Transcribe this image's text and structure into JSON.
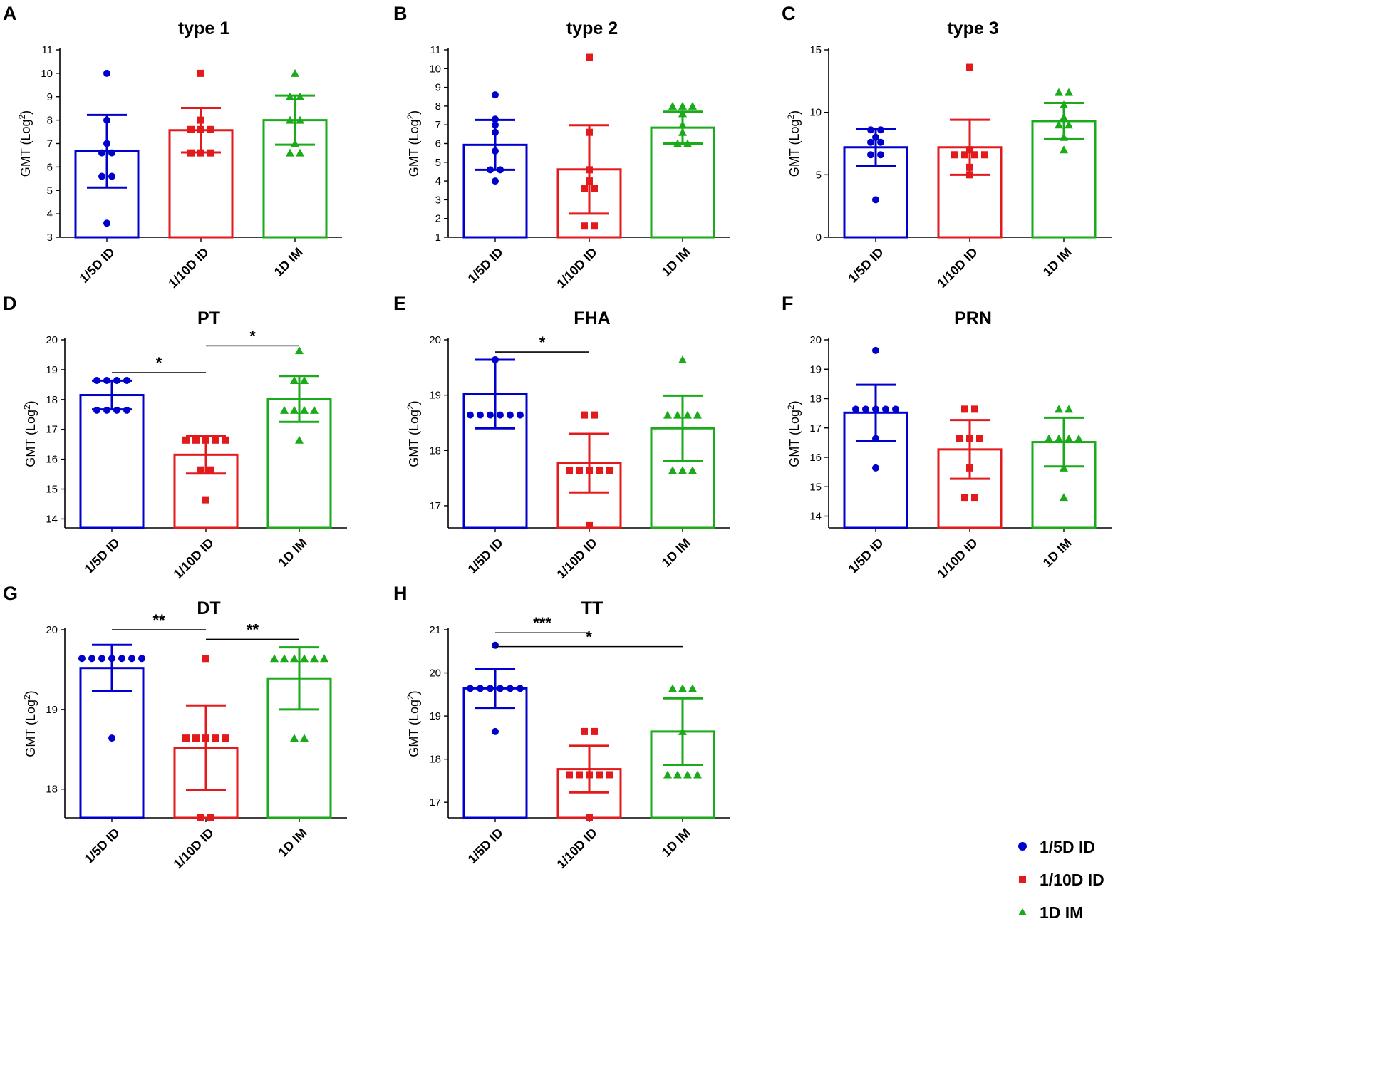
{
  "figure": {
    "groups": [
      "1/5D ID",
      "1/10D ID",
      "1D IM"
    ],
    "colors": {
      "1/5D ID": "#0000cc",
      "1/10D ID": "#e31a1c",
      "1D IM": "#1aaa1a"
    },
    "markers": {
      "1/5D ID": "circle",
      "1/10D ID": "square",
      "1D IM": "triangle"
    },
    "legend": {
      "items": [
        "1/5D ID",
        "1/10D ID",
        "1D IM"
      ],
      "placement": "bottom-right"
    }
  },
  "chart_data": [
    {
      "panel": "A",
      "title": "type 1",
      "type": "bar",
      "ylabel": "GMT (Log",
      "ylabel_sup": "2",
      "ylabel_end": ")",
      "ylim": [
        3,
        11
      ],
      "yticks": [
        "3",
        "4",
        "5",
        "6",
        "7",
        "8",
        "9",
        "10",
        "11"
      ],
      "categories": [
        "1/5D ID",
        "1/10D ID",
        "1D IM"
      ],
      "means": [
        6.67,
        7.57,
        8.0
      ],
      "sd": [
        1.55,
        0.95,
        1.05
      ],
      "points": [
        [
          10,
          8,
          7,
          6.6,
          6.6,
          5.6,
          5.6,
          3.6
        ],
        [
          10,
          8,
          7.6,
          7.6,
          7.6,
          6.6,
          6.6,
          6.6
        ],
        [
          10,
          9,
          9,
          8,
          8,
          7,
          6.6,
          6.6
        ]
      ],
      "significance": []
    },
    {
      "panel": "B",
      "title": "type 2",
      "type": "bar",
      "ylabel": "GMT (Log",
      "ylabel_sup": "2",
      "ylabel_end": ")",
      "ylim": [
        1,
        11
      ],
      "yticks": [
        "1",
        "2",
        "3",
        "4",
        "5",
        "6",
        "7",
        "8",
        "9",
        "10",
        "11"
      ],
      "categories": [
        "1/5D ID",
        "1/10D ID",
        "1D IM"
      ],
      "means": [
        5.93,
        4.62,
        6.85
      ],
      "sd": [
        1.33,
        2.36,
        0.85
      ],
      "points": [
        [
          8.6,
          7.3,
          7,
          6.6,
          5.6,
          4.6,
          4.6,
          4
        ],
        [
          10.6,
          6.6,
          4.6,
          4,
          3.6,
          3.6,
          1.6,
          1.6
        ],
        [
          8,
          8,
          8,
          7.6,
          7,
          6.6,
          6,
          6
        ]
      ],
      "significance": []
    },
    {
      "panel": "C",
      "title": "type 3",
      "type": "bar",
      "ylabel": "GMT (Log",
      "ylabel_sup": "2",
      "ylabel_end": ")",
      "ylim": [
        0,
        15
      ],
      "yticks": [
        "0",
        "5",
        "10",
        "15"
      ],
      "categories": [
        "1/5D ID",
        "1/10D ID",
        "1D IM"
      ],
      "means": [
        7.2,
        7.2,
        9.3
      ],
      "sd": [
        1.5,
        2.2,
        1.45
      ],
      "points": [
        [
          8.6,
          8.6,
          8,
          7.6,
          7.6,
          6.6,
          6.6,
          3
        ],
        [
          13.6,
          7,
          6.6,
          6.6,
          6.6,
          6.6,
          5.6,
          5
        ],
        [
          11.6,
          11.6,
          10.6,
          9.6,
          9,
          9,
          8,
          7
        ]
      ],
      "significance": []
    },
    {
      "panel": "D",
      "title": "PT",
      "type": "bar",
      "ylabel": "GMT (Log",
      "ylabel_sup": "2",
      "ylabel_end": ")",
      "ylim": [
        13.7,
        20
      ],
      "yticks": [
        "14",
        "15",
        "16",
        "17",
        "18",
        "19",
        "20"
      ],
      "categories": [
        "1/5D ID",
        "1/10D ID",
        "1D IM"
      ],
      "means": [
        18.15,
        16.15,
        18.02
      ],
      "sd": [
        0.48,
        0.63,
        0.77
      ],
      "points": [
        [
          18.64,
          18.64,
          18.64,
          18.64,
          17.64,
          17.64,
          17.64,
          17.64
        ],
        [
          16.64,
          16.64,
          16.64,
          16.64,
          16.64,
          15.64,
          15.64,
          14.64
        ],
        [
          19.64,
          18.64,
          18.64,
          17.64,
          17.64,
          17.64,
          17.64,
          16.64
        ]
      ],
      "significance": [
        {
          "from": 0,
          "to": 1,
          "label": "*",
          "level": 18.9
        },
        {
          "from": 1,
          "to": 2,
          "label": "*",
          "level": 19.8
        }
      ]
    },
    {
      "panel": "E",
      "title": "FHA",
      "type": "bar",
      "ylabel": "GMT (Log",
      "ylabel_sup": "2",
      "ylabel_end": ")",
      "ylim": [
        16.6,
        20
      ],
      "yticks": [
        "17",
        "18",
        "19",
        "20"
      ],
      "categories": [
        "1/5D ID",
        "1/10D ID",
        "1D IM"
      ],
      "means": [
        19.02,
        17.77,
        18.4
      ],
      "sd": [
        0.62,
        0.53,
        0.59
      ],
      "points": [
        [
          19.64,
          18.64,
          18.64,
          18.64,
          18.64,
          18.64,
          18.64
        ],
        [
          18.64,
          18.64,
          17.64,
          17.64,
          17.64,
          17.64,
          17.64,
          16.64
        ],
        [
          19.64,
          18.64,
          18.64,
          18.64,
          18.64,
          17.64,
          17.64,
          17.64
        ]
      ],
      "significance": [
        {
          "from": 0,
          "to": 1,
          "label": "*",
          "level": 19.78
        }
      ]
    },
    {
      "panel": "F",
      "title": "PRN",
      "type": "bar",
      "ylabel": "GMT (Log",
      "ylabel_sup": "2",
      "ylabel_end": ")",
      "ylim": [
        13.6,
        20
      ],
      "yticks": [
        "14",
        "15",
        "16",
        "17",
        "18",
        "19",
        "20"
      ],
      "categories": [
        "1/5D ID",
        "1/10D ID",
        "1D IM"
      ],
      "means": [
        17.52,
        16.27,
        16.52
      ],
      "sd": [
        0.95,
        1.0,
        0.83
      ],
      "points": [
        [
          19.64,
          17.64,
          17.64,
          17.64,
          17.64,
          17.64,
          16.64,
          15.64
        ],
        [
          17.64,
          17.64,
          16.64,
          16.64,
          16.64,
          15.64,
          14.64,
          14.64
        ],
        [
          17.64,
          17.64,
          16.64,
          16.64,
          16.64,
          16.64,
          15.64,
          14.64
        ]
      ],
      "significance": []
    },
    {
      "panel": "G",
      "title": "DT",
      "type": "bar",
      "ylabel": "GMT (Log",
      "ylabel_sup": "2",
      "ylabel_end": ")",
      "ylim": [
        17.64,
        20
      ],
      "yticks": [
        "18",
        "19",
        "20"
      ],
      "categories": [
        "1/5D ID",
        "1/10D ID",
        "1D IM"
      ],
      "means": [
        19.52,
        18.52,
        19.39
      ],
      "sd": [
        0.29,
        0.53,
        0.39
      ],
      "points": [
        [
          19.64,
          19.64,
          19.64,
          19.64,
          19.64,
          19.64,
          19.64,
          18.64
        ],
        [
          19.64,
          18.64,
          18.64,
          18.64,
          18.64,
          18.64,
          17.64,
          17.64
        ],
        [
          19.64,
          19.64,
          19.64,
          19.64,
          19.64,
          19.64,
          18.64,
          18.64
        ]
      ],
      "significance": [
        {
          "from": 0,
          "to": 1,
          "label": "**",
          "level": 20.0
        },
        {
          "from": 1,
          "to": 2,
          "label": "**",
          "level": 19.88
        }
      ]
    },
    {
      "panel": "H",
      "title": "TT",
      "type": "bar",
      "ylabel": "GMT (Log",
      "ylabel_sup": "2",
      "ylabel_end": ")",
      "ylim": [
        16.64,
        21
      ],
      "yticks": [
        "17",
        "18",
        "19",
        "20",
        "21"
      ],
      "categories": [
        "1/5D ID",
        "1/10D ID",
        "1D IM"
      ],
      "means": [
        19.64,
        17.77,
        18.64
      ],
      "sd": [
        0.45,
        0.54,
        0.77
      ],
      "points": [
        [
          20.64,
          19.64,
          19.64,
          19.64,
          19.64,
          19.64,
          19.64,
          18.64
        ],
        [
          18.64,
          18.64,
          17.64,
          17.64,
          17.64,
          17.64,
          17.64,
          16.64
        ],
        [
          19.64,
          19.64,
          19.64,
          18.64,
          17.64,
          17.64,
          17.64,
          17.64
        ]
      ],
      "significance": [
        {
          "from": 0,
          "to": 1,
          "label": "***",
          "level": 20.93
        },
        {
          "from": 0,
          "to": 2,
          "label": "*",
          "level": 20.61
        }
      ]
    }
  ]
}
